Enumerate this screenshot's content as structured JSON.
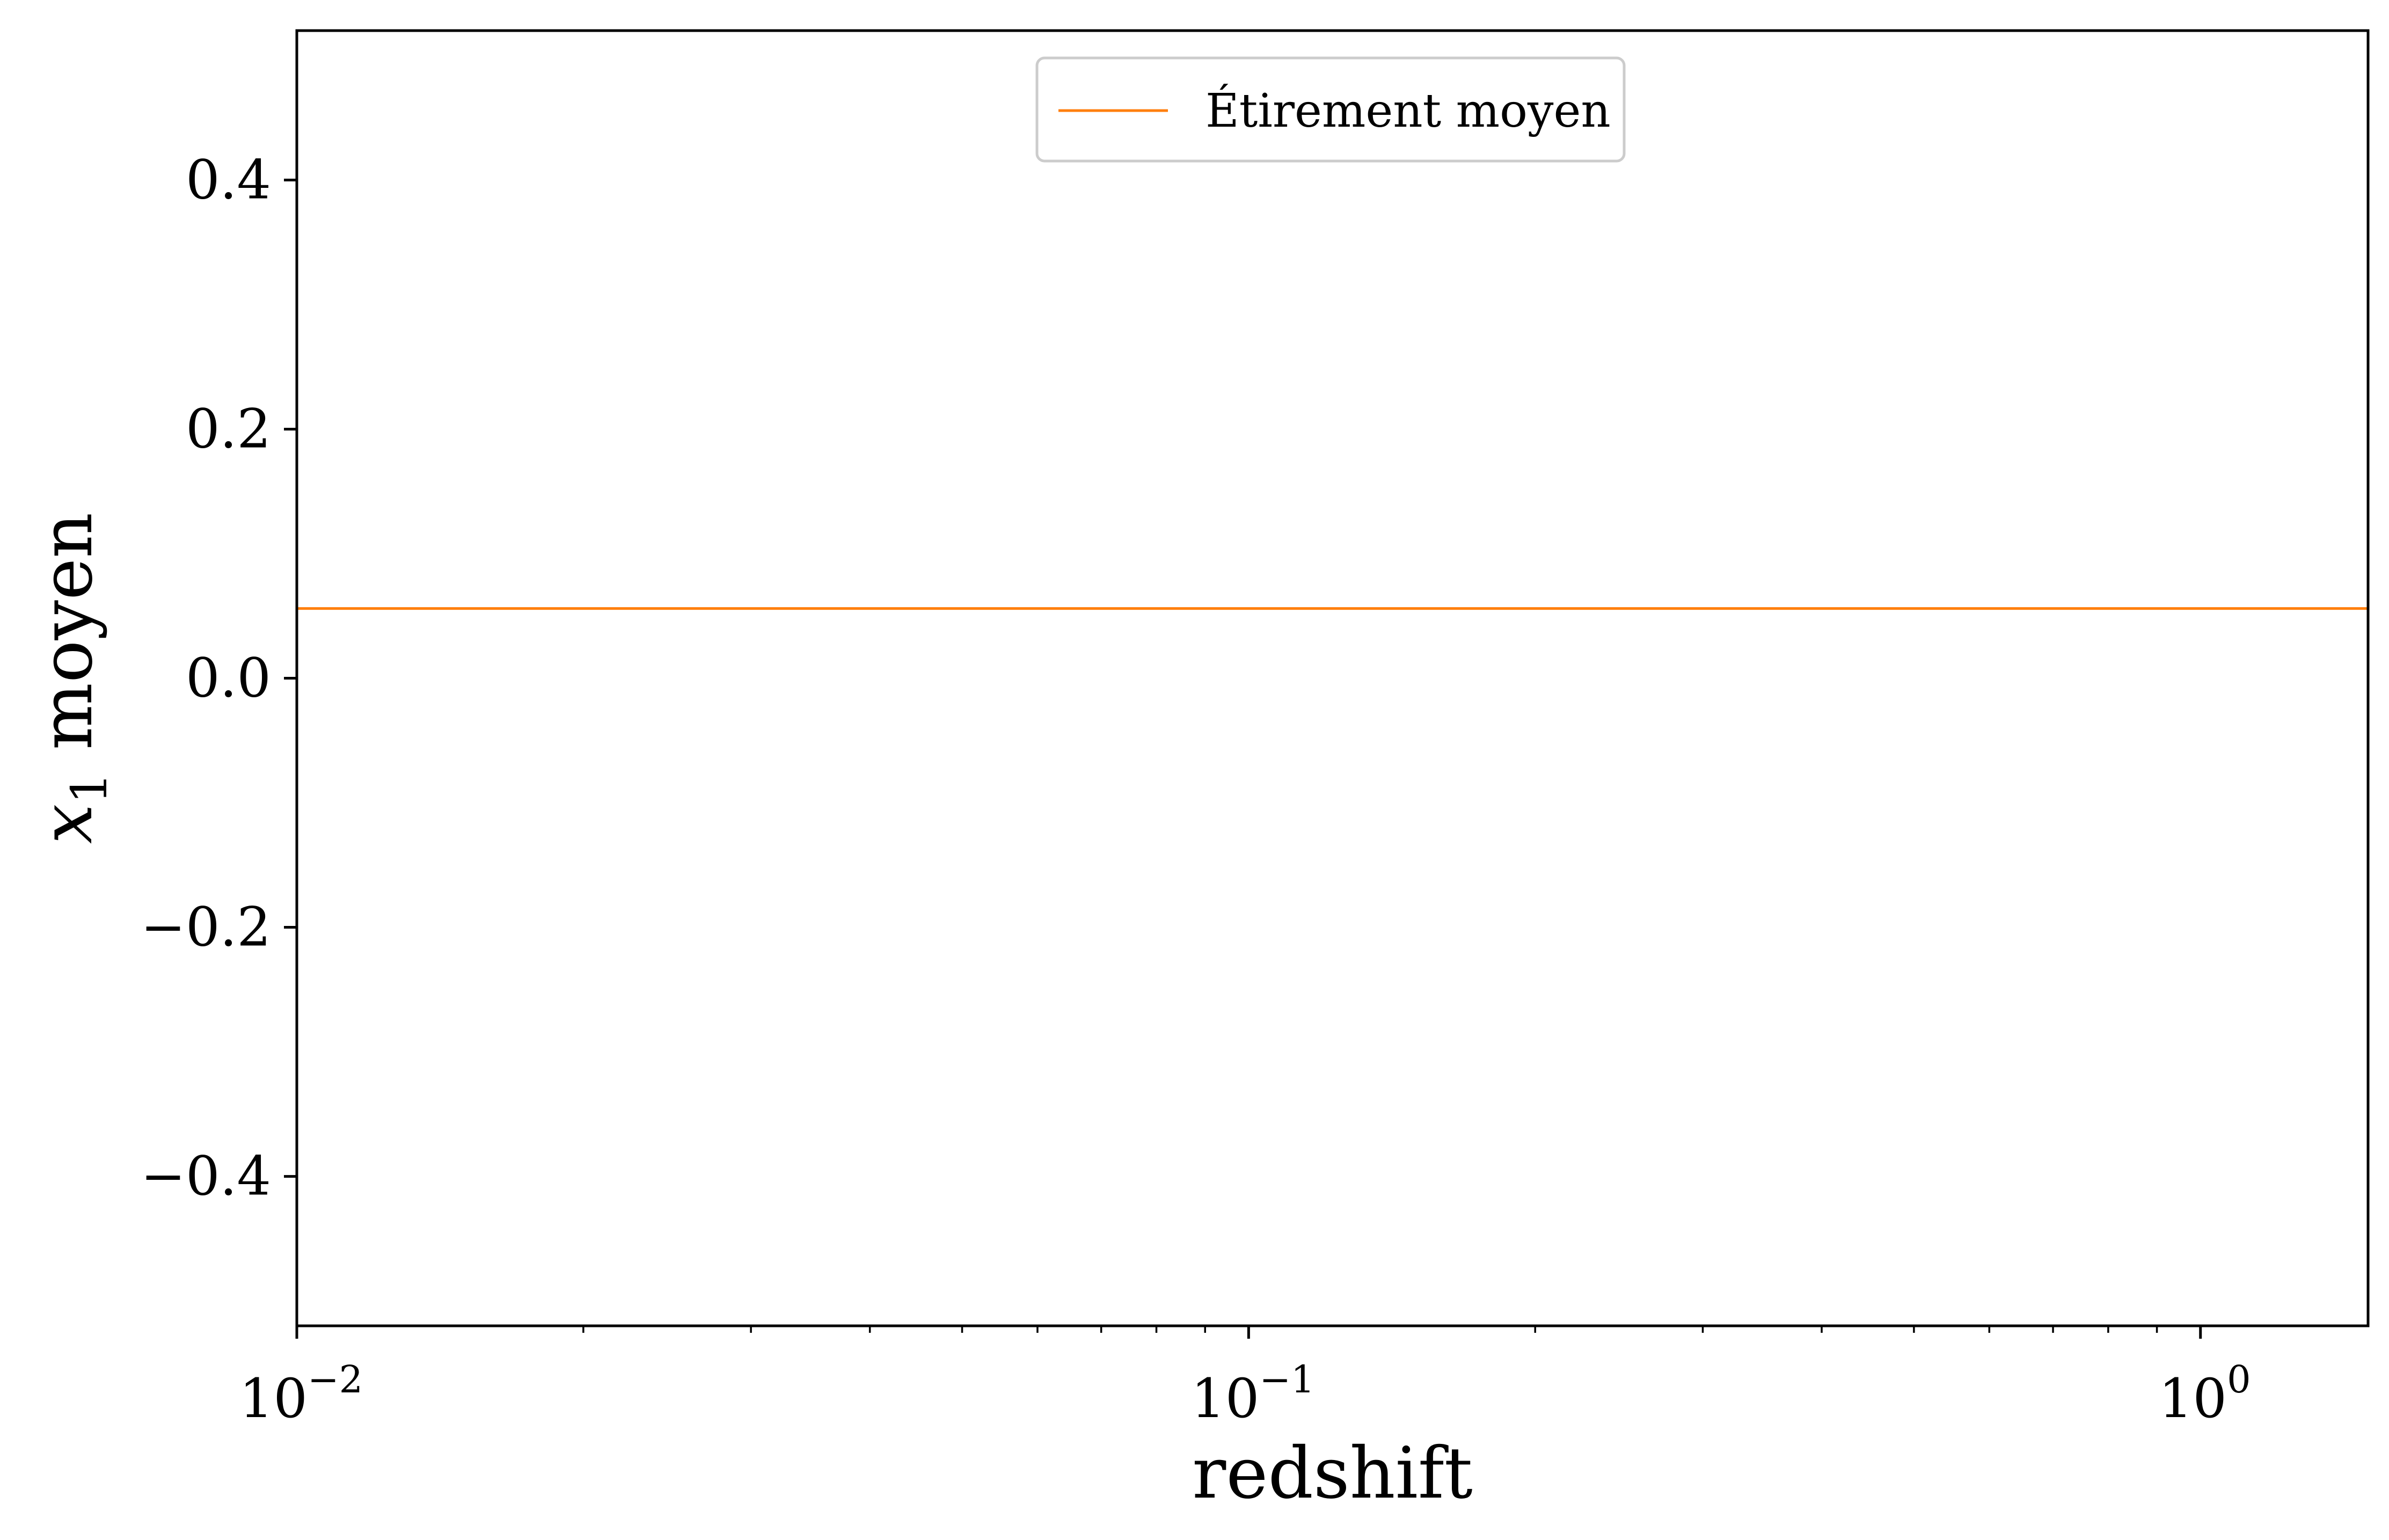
{
  "chart_data": {
    "type": "line",
    "xscale": "log",
    "xlabel": "redshift",
    "ylabel": {
      "symbol": "x",
      "subscript": "1",
      "rest": "moyen"
    },
    "xlim": [
      0.01,
      1.5
    ],
    "ylim": [
      -0.52,
      0.52
    ],
    "x_ticks": [
      {
        "value": 0.01,
        "base": "10",
        "exp": "−2"
      },
      {
        "value": 0.1,
        "base": "10",
        "exp": "−1"
      },
      {
        "value": 1,
        "base": "10",
        "exp": "0"
      }
    ],
    "y_ticks": [
      {
        "value": 0.4,
        "label": "0.4"
      },
      {
        "value": 0.2,
        "label": "0.2"
      },
      {
        "value": 0.0,
        "label": "0.0"
      },
      {
        "value": -0.2,
        "label": "−0.2"
      },
      {
        "value": -0.4,
        "label": "−0.4"
      }
    ],
    "series": [
      {
        "name": "Étirement moyen",
        "color": "#ff7f0e",
        "x": [
          0.01,
          1.5
        ],
        "y": [
          0.056,
          0.056
        ]
      }
    ],
    "legend": {
      "position": "top-center",
      "entries": [
        "Étirement moyen"
      ]
    },
    "grid": false
  }
}
